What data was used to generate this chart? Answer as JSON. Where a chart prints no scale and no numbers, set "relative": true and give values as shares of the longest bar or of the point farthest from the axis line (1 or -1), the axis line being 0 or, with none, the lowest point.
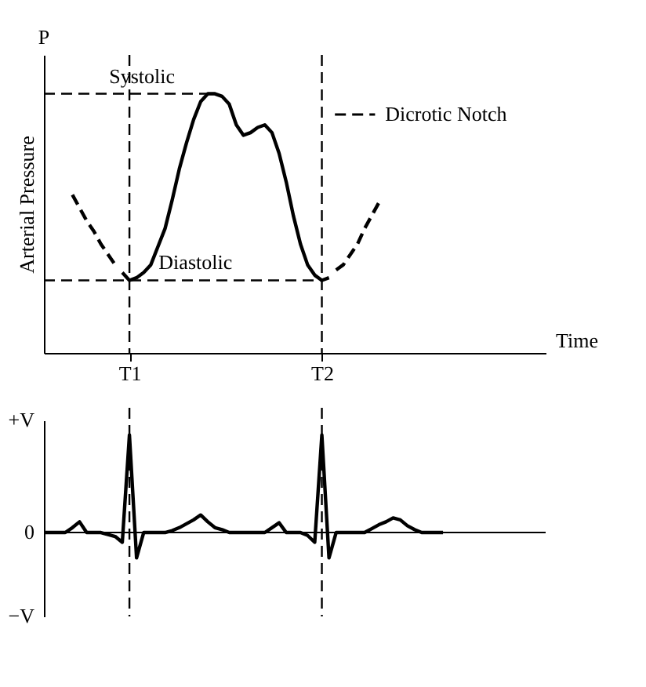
{
  "chart_data": [
    {
      "type": "line",
      "relative": true,
      "xlabel": "Time",
      "ylabel": "Arterial Pressure",
      "tick_labels": "x",
      "categories": [
        null,
        null,
        null,
        null,
        null,
        null,
        null,
        null,
        null,
        null,
        null,
        null,
        "T1",
        null,
        null,
        null,
        null,
        null,
        null,
        null,
        null,
        null,
        null,
        null,
        null,
        null,
        null,
        null,
        null,
        null,
        null,
        null,
        null,
        null,
        null,
        null,
        null,
        null,
        null,
        "T2",
        null,
        null,
        null,
        null,
        null,
        null,
        null,
        null,
        null,
        null,
        null,
        null,
        null,
        null,
        null,
        null,
        null,
        null,
        null,
        null,
        null,
        null,
        null,
        null,
        null
      ],
      "series": [
        {
          "color": "#000000",
          "line_style": "dashed",
          "values": [
            null,
            null,
            null,
            null,
            0.61,
            0.56,
            0.51,
            0.47,
            0.42,
            0.38,
            0.34,
            null,
            null,
            null,
            null,
            null,
            null,
            null,
            null,
            null,
            null,
            null,
            null,
            null,
            null,
            null,
            null,
            null,
            null,
            null,
            null,
            null,
            null,
            null,
            null,
            null,
            null,
            null,
            null,
            null,
            null,
            null,
            null,
            null,
            null,
            null,
            null,
            null,
            null,
            null,
            null,
            null,
            null,
            null,
            null,
            null,
            null,
            null,
            null,
            null,
            null,
            null,
            null,
            null,
            null
          ]
        },
        {
          "color": "#000000",
          "line_style": "solid",
          "values": [
            null,
            null,
            null,
            null,
            null,
            null,
            null,
            null,
            null,
            null,
            null,
            0.31,
            0.28,
            0.29,
            0.31,
            0.34,
            0.41,
            0.48,
            0.59,
            0.71,
            0.81,
            0.9,
            0.97,
            1.0,
            1.0,
            0.99,
            0.96,
            0.88,
            0.84,
            0.85,
            0.87,
            0.88,
            0.85,
            0.77,
            0.66,
            0.53,
            0.42,
            0.34,
            0.3,
            0.28,
            0.29,
            null,
            null,
            null,
            null,
            null,
            null,
            null,
            null,
            null,
            null,
            null,
            null,
            null,
            null,
            null,
            null,
            null,
            null,
            null,
            null,
            null,
            null,
            null,
            null
          ]
        },
        {
          "color": "#000000",
          "line_style": "dashed",
          "values": [
            null,
            null,
            null,
            null,
            null,
            null,
            null,
            null,
            null,
            null,
            null,
            null,
            null,
            null,
            null,
            null,
            null,
            null,
            null,
            null,
            null,
            null,
            null,
            null,
            null,
            null,
            null,
            null,
            null,
            null,
            null,
            null,
            null,
            null,
            null,
            null,
            null,
            null,
            null,
            null,
            null,
            0.32,
            0.34,
            0.38,
            0.42,
            0.48,
            0.53,
            0.58,
            null,
            null,
            null,
            null,
            null,
            null,
            null,
            null,
            null,
            null,
            null,
            null,
            null,
            null,
            null,
            null,
            null
          ]
        }
      ],
      "ref_lines": [
        {
          "axis": "y",
          "value": 1.0,
          "label": "Systolic",
          "line_style": "dashed",
          "color": "#000000"
        },
        {
          "axis": "y",
          "value": 0.28,
          "label": "Diastolic",
          "line_style": "dashed",
          "color": "#000000"
        },
        {
          "axis": "x",
          "value": "T1",
          "line_style": "dashed",
          "color": "#000000"
        },
        {
          "axis": "x",
          "value": "T2",
          "line_style": "dashed",
          "color": "#000000"
        }
      ],
      "annotations": [
        "P",
        "Dicrotic Notch"
      ]
    },
    {
      "type": "line",
      "relative": true,
      "tick_labels": false,
      "categories": [
        null,
        null,
        null,
        null,
        null,
        null,
        null,
        null,
        null,
        null,
        null,
        null,
        "T1",
        null,
        null,
        null,
        null,
        null,
        null,
        null,
        null,
        null,
        null,
        null,
        null,
        null,
        null,
        null,
        null,
        null,
        null,
        null,
        null,
        null,
        null,
        null,
        null,
        null,
        null,
        "T2",
        null,
        null,
        null,
        null,
        null,
        null,
        null,
        null,
        null,
        null,
        null,
        null,
        null,
        null,
        null,
        null,
        null,
        null,
        null,
        null,
        null,
        null,
        null,
        null,
        null
      ],
      "series": [
        {
          "color": "#000000",
          "line_style": "solid",
          "values": [
            0,
            0,
            0,
            0,
            0.05,
            0.11,
            0,
            0,
            0,
            -0.02,
            -0.04,
            -0.1,
            1,
            -0.26,
            0,
            0,
            0,
            0,
            0.02,
            0.05,
            0.09,
            0.13,
            0.18,
            0.11,
            0.05,
            0.03,
            0,
            0,
            0,
            0,
            0,
            0,
            0.05,
            0.1,
            0,
            0,
            0,
            -0.03,
            -0.1,
            1,
            -0.26,
            0,
            0,
            0,
            0,
            0,
            0.04,
            0.08,
            0.11,
            0.15,
            0.13,
            0.07,
            0.03,
            0,
            0,
            0,
            0,
            null,
            null,
            null,
            null,
            null,
            null,
            null,
            null
          ]
        }
      ],
      "ref_lines": [
        {
          "axis": "x",
          "value": "T1",
          "line_style": "dashed",
          "color": "#000000"
        },
        {
          "axis": "x",
          "value": "T2",
          "line_style": "dashed",
          "color": "#000000"
        }
      ],
      "annotations": [
        "+V",
        "0",
        "−V"
      ]
    }
  ]
}
